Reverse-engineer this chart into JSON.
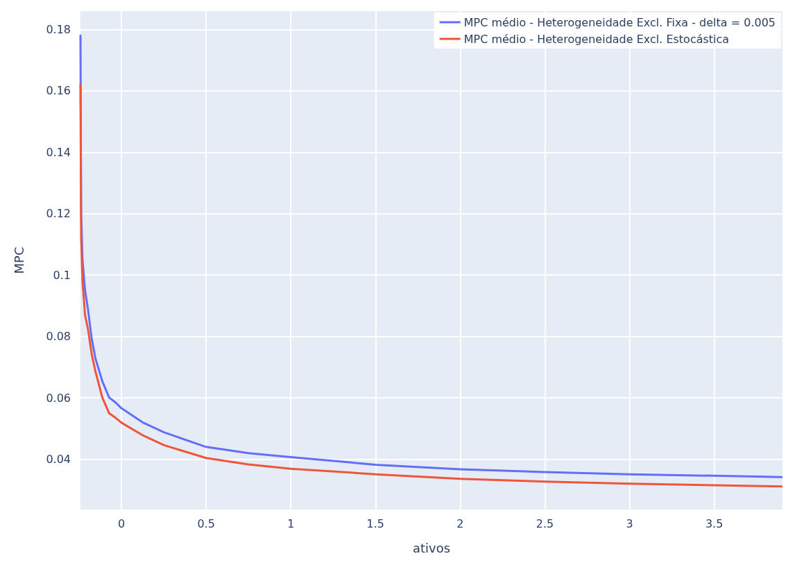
{
  "chart_data": {
    "type": "line",
    "xlabel": "ativos",
    "ylabel": "MPC",
    "xlim": [
      -0.242,
      3.903
    ],
    "ylim": [
      0.0236,
      0.186
    ],
    "xticks": [
      0,
      0.5,
      1,
      1.5,
      2,
      2.5,
      3,
      3.5
    ],
    "yticks": [
      0.04,
      0.06,
      0.08,
      0.1,
      0.12,
      0.14,
      0.16,
      0.18
    ],
    "grid": true,
    "legend": "top right",
    "marker": "none",
    "line_style": "solid",
    "series": [
      {
        "name": "MPC médio - Heterogeneidade Excl. Fixa - delta = 0.005",
        "color": "#636efa",
        "x": [
          -0.242,
          -0.238,
          -0.23,
          -0.215,
          -0.198,
          -0.175,
          -0.153,
          -0.113,
          -0.073,
          -0.035,
          0,
          0.129,
          0.25,
          0.5,
          0.75,
          1,
          1.5,
          2,
          2.5,
          3,
          3.5,
          3.903
        ],
        "values": [
          0.178,
          0.12,
          0.105,
          0.095,
          0.089,
          0.079,
          0.0727,
          0.0654,
          0.0601,
          0.0585,
          0.0566,
          0.0519,
          0.0488,
          0.044,
          0.042,
          0.0407,
          0.0382,
          0.0367,
          0.0358,
          0.0351,
          0.0346,
          0.0342
        ]
      },
      {
        "name": "MPC médio - Heterogeneidade Excl. Estocástica",
        "color": "#ef553b",
        "x": [
          -0.242,
          -0.238,
          -0.23,
          -0.215,
          -0.198,
          -0.175,
          -0.153,
          -0.113,
          -0.073,
          -0.035,
          0,
          0.129,
          0.25,
          0.5,
          0.75,
          1,
          1.5,
          2,
          2.5,
          3,
          3.5,
          3.903
        ],
        "values": [
          0.162,
          0.112,
          0.098,
          0.087,
          0.0825,
          0.074,
          0.0685,
          0.0601,
          0.055,
          0.0535,
          0.0519,
          0.0477,
          0.0446,
          0.0404,
          0.0383,
          0.0369,
          0.0351,
          0.0336,
          0.0327,
          0.032,
          0.0315,
          0.0311
        ]
      }
    ]
  }
}
